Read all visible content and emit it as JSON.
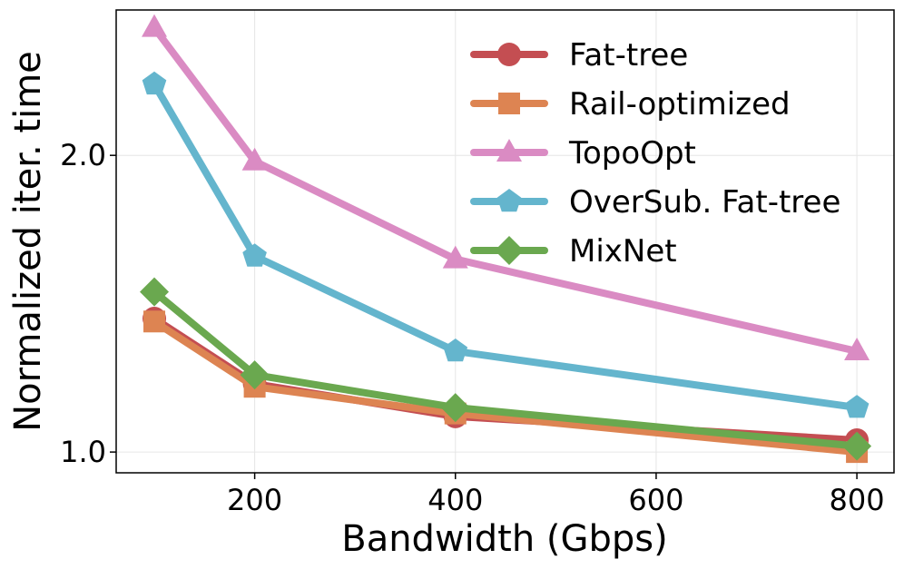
{
  "chart_data": {
    "type": "line",
    "xlabel": "Bandwidth (Gbps)",
    "ylabel": "Normalized iter. time",
    "x": [
      100,
      200,
      400,
      800
    ],
    "xlim": [
      62,
      837
    ],
    "ylim": [
      0.93,
      2.49
    ],
    "xticks": [
      200,
      400,
      600,
      800
    ],
    "yticks": [
      1.0,
      2.0
    ],
    "ytick_labels": [
      "1.0",
      "2.0"
    ],
    "grid": true,
    "legend_position": "top-right",
    "series": [
      {
        "name": "Fat-tree",
        "color": "#c44e52",
        "marker": "circle",
        "values": [
          1.45,
          1.23,
          1.12,
          1.04
        ]
      },
      {
        "name": "Rail-optimized",
        "color": "#dd8452",
        "marker": "square",
        "values": [
          1.44,
          1.22,
          1.13,
          1.0
        ]
      },
      {
        "name": "TopoOpt",
        "color": "#da8bc3",
        "marker": "triangle",
        "values": [
          2.43,
          1.98,
          1.65,
          1.34
        ]
      },
      {
        "name": "OverSub. Fat-tree",
        "color": "#64b5cd",
        "marker": "pentagon",
        "values": [
          2.24,
          1.66,
          1.34,
          1.15
        ]
      },
      {
        "name": "MixNet",
        "color": "#6aa84f",
        "marker": "diamond",
        "values": [
          1.54,
          1.26,
          1.15,
          1.02
        ]
      }
    ]
  }
}
